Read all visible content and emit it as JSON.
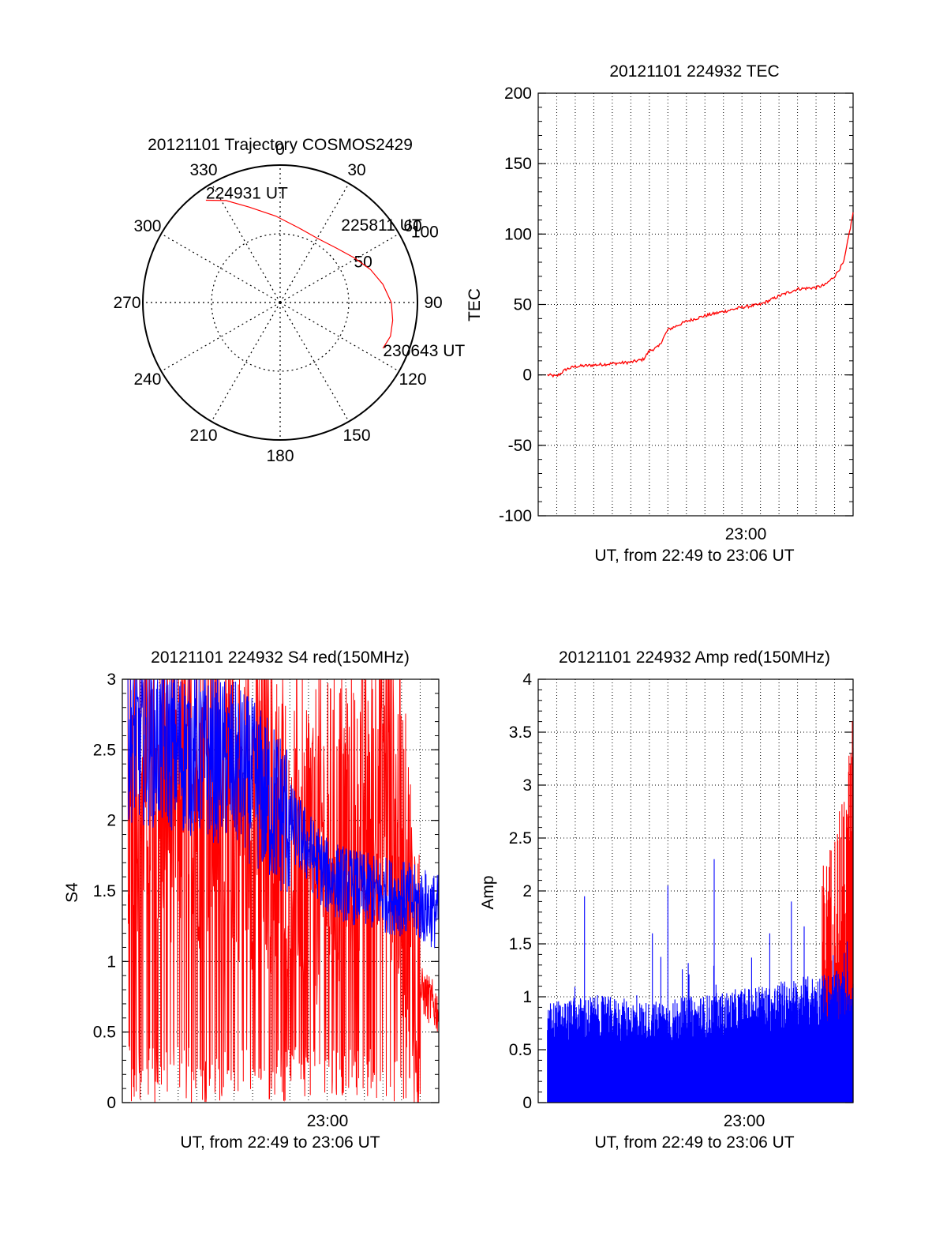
{
  "colors": {
    "red": "#ff0000",
    "blue": "#0000ff",
    "axis": "#000000"
  },
  "chart_data": [
    {
      "type": "polar",
      "title": "20121101 Trajectory COSMOS2429",
      "angle_labels": [
        "0",
        "30",
        "60",
        "90",
        "120",
        "150",
        "180",
        "210",
        "240",
        "270",
        "300",
        "330"
      ],
      "radial_labels": [
        "50",
        "100"
      ],
      "rlim": [
        0,
        100
      ],
      "grid": true,
      "track": [
        {
          "az": 324,
          "r": 92
        },
        {
          "az": 332,
          "r": 84
        },
        {
          "az": 342,
          "r": 73
        },
        {
          "az": 357,
          "r": 63
        },
        {
          "az": 14,
          "r": 56
        },
        {
          "az": 30,
          "r": 54
        },
        {
          "az": 46,
          "r": 57
        },
        {
          "az": 59,
          "r": 63
        },
        {
          "az": 70,
          "r": 70
        },
        {
          "az": 80,
          "r": 76
        },
        {
          "az": 90,
          "r": 81
        },
        {
          "az": 99,
          "r": 83
        },
        {
          "az": 107,
          "r": 84
        },
        {
          "az": 114,
          "r": 82
        }
      ],
      "annotations": [
        {
          "text": "224931 UT",
          "az": 324,
          "r": 92
        },
        {
          "text": "225811 UT",
          "az": 50,
          "r": 58
        },
        {
          "text": "230643 UT",
          "az": 114,
          "r": 82
        }
      ]
    },
    {
      "type": "line",
      "title": "20121101 224932 TEC",
      "xlabel": "UT, from 22:49 to 23:06 UT",
      "ylabel": "TEC",
      "xlim": [
        "22:49",
        "23:06"
      ],
      "ylim": [
        -100,
        200
      ],
      "yticks": [
        "-100",
        "-50",
        "0",
        "50",
        "100",
        "150",
        "200"
      ],
      "xticks": [
        "23:00"
      ],
      "grid": true,
      "series": [
        {
          "color": "red",
          "x": [
            "22:49:30",
            "22:50:00",
            "22:50:30",
            "22:51:00",
            "22:52:00",
            "22:53:00",
            "22:54:00",
            "22:54:40",
            "22:55:00",
            "22:55:30",
            "22:56:00",
            "22:57:00",
            "22:58:00",
            "22:59:00",
            "23:00:00",
            "23:01:00",
            "23:02:00",
            "23:03:00",
            "23:04:00",
            "23:04:30",
            "23:05:00",
            "23:05:30",
            "23:06:00"
          ],
          "values": [
            0,
            -1,
            4,
            6,
            7,
            8,
            9,
            11,
            17,
            20,
            32,
            38,
            42,
            45,
            48,
            50,
            56,
            61,
            62,
            64,
            70,
            80,
            115
          ]
        }
      ]
    },
    {
      "type": "line",
      "title": "20121101 224932 S4 red(150MHz)",
      "xlabel": "UT, from 22:49 to 23:06 UT",
      "ylabel": "S4",
      "xlim": [
        "22:49",
        "23:06"
      ],
      "ylim": [
        0,
        3
      ],
      "yticks": [
        "0",
        "0.5",
        "1",
        "1.5",
        "2",
        "2.5",
        "3"
      ],
      "xticks": [
        "23:00"
      ],
      "grid": true,
      "series": [
        {
          "color": "red",
          "description_level": "clipped between 0 and 3, dense noise; drops to about 0.7 near 23:05-23:06",
          "envelope_x": [
            "22:49",
            "22:52",
            "22:55",
            "22:58",
            "23:00",
            "23:03",
            "23:04",
            "23:05",
            "23:06"
          ],
          "envelope_mean": [
            2.4,
            2.3,
            2.2,
            2.0,
            1.8,
            2.5,
            1.8,
            0.8,
            0.65
          ]
        },
        {
          "color": "blue",
          "envelope_x": [
            "22:49",
            "22:52",
            "22:55",
            "22:58",
            "23:00",
            "23:02",
            "23:04",
            "23:06"
          ],
          "envelope_mean": [
            2.6,
            2.5,
            2.4,
            2.0,
            1.6,
            1.5,
            1.45,
            1.35
          ]
        }
      ]
    },
    {
      "type": "bar",
      "title": "20121101 224932 Amp red(150MHz)",
      "xlabel": "UT, from 22:49 to 23:06 UT",
      "ylabel": "Amp",
      "xlim": [
        "22:49",
        "23:06"
      ],
      "ylim": [
        0,
        4
      ],
      "yticks": [
        "0",
        "0.5",
        "1",
        "1.5",
        "2",
        "2.5",
        "3",
        "3.5",
        "4"
      ],
      "xticks": [
        "23:00"
      ],
      "grid": true,
      "series": [
        {
          "color": "blue",
          "envelope_x": [
            "22:49:30",
            "22:52",
            "22:55",
            "22:58",
            "23:00",
            "23:02",
            "23:04",
            "23:06"
          ],
          "envelope_mean": [
            0.75,
            0.8,
            0.75,
            0.8,
            0.85,
            0.9,
            0.95,
            1.0
          ],
          "spikes": [
            {
              "x": "22:51:30",
              "y": 1.95
            },
            {
              "x": "22:56:00",
              "y": 2.05
            },
            {
              "x": "22:58:30",
              "y": 2.3
            },
            {
              "x": "22:55:10",
              "y": 1.6
            },
            {
              "x": "23:01:30",
              "y": 1.6
            },
            {
              "x": "23:02:40",
              "y": 1.9
            }
          ]
        },
        {
          "color": "red",
          "envelope_x": [
            "23:04:30",
            "23:05:00",
            "23:05:30",
            "23:06:00"
          ],
          "envelope_mean": [
            1.6,
            1.8,
            2.0,
            2.6
          ],
          "spikes": [
            {
              "x": "23:06:00",
              "y": 3.35
            },
            {
              "x": "23:05:40",
              "y": 2.6
            }
          ]
        }
      ]
    }
  ]
}
